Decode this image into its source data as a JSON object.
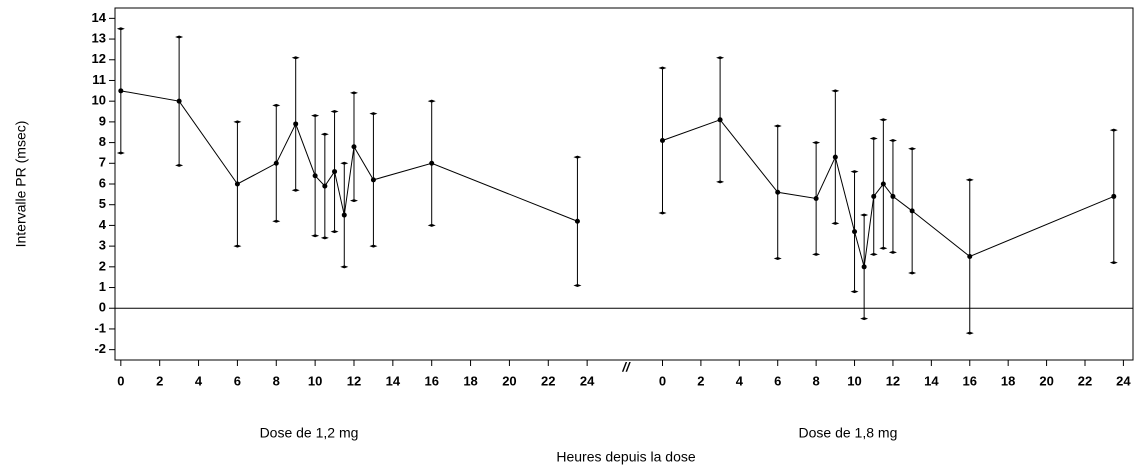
{
  "chart_data": {
    "type": "line",
    "ylabel": "Intervalle PR (msec)",
    "xlabel": "Heures depuis la dose",
    "axis_break": "//",
    "color": "#000000",
    "ylim": [
      -2.5,
      14.5
    ],
    "yticks": [
      -2,
      -1,
      0,
      1,
      2,
      3,
      4,
      5,
      6,
      7,
      8,
      9,
      10,
      11,
      12,
      13,
      14
    ],
    "panels": [
      {
        "name": "Dose de 1,2 mg",
        "xlim": [
          -0.3,
          26
        ],
        "xticks": [
          0,
          2,
          4,
          6,
          8,
          10,
          12,
          14,
          16,
          18,
          20,
          22,
          24
        ],
        "x": [
          0,
          3,
          6,
          8,
          9,
          10,
          10.5,
          11,
          11.5,
          12,
          13,
          16,
          23.5
        ],
        "values": [
          10.5,
          10.0,
          6.0,
          7.0,
          8.9,
          6.4,
          5.9,
          6.6,
          4.5,
          7.8,
          6.2,
          7.0,
          4.2
        ],
        "errors": [
          3.0,
          3.1,
          3.0,
          2.8,
          3.2,
          2.9,
          2.5,
          2.9,
          2.5,
          2.6,
          3.2,
          3.0,
          3.1
        ]
      },
      {
        "name": "Dose de 1,8 mg",
        "xlim": [
          -1.9,
          24.5
        ],
        "xticks": [
          0,
          2,
          4,
          6,
          8,
          10,
          12,
          14,
          16,
          18,
          20,
          22,
          24
        ],
        "x": [
          0,
          3,
          6,
          8,
          9,
          10,
          10.5,
          11,
          11.5,
          12,
          13,
          16,
          23.5
        ],
        "values": [
          8.1,
          9.1,
          5.6,
          5.3,
          7.3,
          3.7,
          2.0,
          5.4,
          6.0,
          5.4,
          4.7,
          2.5,
          5.4
        ],
        "errors": [
          3.5,
          3.0,
          3.2,
          2.7,
          3.2,
          2.9,
          2.5,
          2.8,
          3.1,
          2.7,
          3.0,
          3.7,
          3.2
        ]
      }
    ]
  }
}
